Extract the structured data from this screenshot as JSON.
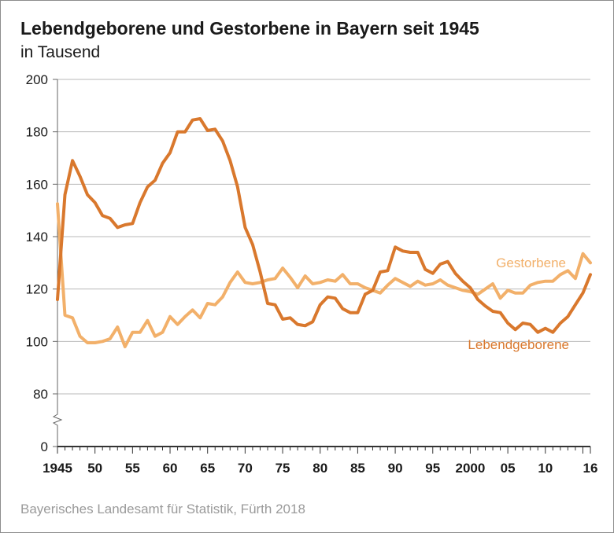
{
  "chart_data": {
    "type": "line",
    "title": "Lebendgeborene und Gestorbene in Bayern seit 1945",
    "subtitle": "in Tausend",
    "source": "Bayerisches Landesamt für Statistik, Fürth 2018",
    "xlabel": "",
    "ylabel": "",
    "ylim": [
      0,
      200
    ],
    "y_ticks": [
      "0",
      "80",
      "100",
      "120",
      "140",
      "160",
      "180",
      "200"
    ],
    "axis_break": "between 0 and 80",
    "x_tick_labels": [
      {
        "year": 1945,
        "label": "1945"
      },
      {
        "year": 1950,
        "label": "50"
      },
      {
        "year": 1955,
        "label": "55"
      },
      {
        "year": 1960,
        "label": "60"
      },
      {
        "year": 1965,
        "label": "65"
      },
      {
        "year": 1970,
        "label": "70"
      },
      {
        "year": 1975,
        "label": "75"
      },
      {
        "year": 1980,
        "label": "80"
      },
      {
        "year": 1985,
        "label": "85"
      },
      {
        "year": 1990,
        "label": "90"
      },
      {
        "year": 1995,
        "label": "95"
      },
      {
        "year": 2000,
        "label": "2000"
      },
      {
        "year": 2005,
        "label": "05"
      },
      {
        "year": 2010,
        "label": "10"
      },
      {
        "year": 2016,
        "label": "16"
      }
    ],
    "x": [
      1945,
      1946,
      1947,
      1948,
      1949,
      1950,
      1951,
      1952,
      1953,
      1954,
      1955,
      1956,
      1957,
      1958,
      1959,
      1960,
      1961,
      1962,
      1963,
      1964,
      1965,
      1966,
      1967,
      1968,
      1969,
      1970,
      1971,
      1972,
      1973,
      1974,
      1975,
      1976,
      1977,
      1978,
      1979,
      1980,
      1981,
      1982,
      1983,
      1984,
      1985,
      1986,
      1987,
      1988,
      1989,
      1990,
      1991,
      1992,
      1993,
      1994,
      1995,
      1996,
      1997,
      1998,
      1999,
      2000,
      2001,
      2002,
      2003,
      2004,
      2005,
      2006,
      2007,
      2008,
      2009,
      2010,
      2011,
      2012,
      2013,
      2014,
      2015,
      2016
    ],
    "series": [
      {
        "name": "Lebendgeborene",
        "color": "#d9782d",
        "values": [
          116,
          156,
          169,
          163,
          156,
          153,
          148,
          147,
          143.5,
          144.5,
          145,
          153,
          159,
          161.5,
          168,
          172,
          180,
          180,
          184.5,
          185,
          180.5,
          181,
          176.5,
          169,
          159,
          143.5,
          137,
          126.5,
          114.5,
          114,
          108.5,
          109,
          106.5,
          106,
          107.5,
          114,
          117,
          116.5,
          112.5,
          111,
          111,
          118,
          119.5,
          126.5,
          127,
          136,
          134.5,
          134,
          134,
          127.5,
          126,
          129.5,
          130.5,
          126,
          123,
          120.5,
          116,
          113.5,
          111.5,
          111,
          107,
          104.5,
          107,
          106.5,
          103.5,
          105,
          103.5,
          107,
          109.5,
          114,
          118.5,
          125.5
        ]
      },
      {
        "name": "Gestorbene",
        "color": "#f2b06a",
        "values": [
          152.5,
          110,
          109,
          102,
          99.5,
          99.5,
          100,
          101,
          105.5,
          98,
          103.5,
          103.5,
          108,
          102,
          103.5,
          109.5,
          106.5,
          109.5,
          112,
          109,
          114.5,
          114,
          117,
          122.5,
          126.5,
          122.5,
          122,
          122.5,
          123.5,
          124,
          128,
          124.5,
          120.5,
          125,
          122,
          122.5,
          123.5,
          123,
          125.5,
          122,
          122,
          120.5,
          119.5,
          118.5,
          121.5,
          124,
          122.5,
          121,
          123,
          121.5,
          122,
          123.5,
          121.5,
          120.5,
          119.5,
          119,
          118,
          120,
          122,
          116.5,
          119.5,
          118.5,
          118.5,
          121.5,
          122.5,
          123,
          123,
          125.5,
          127,
          124,
          133.5,
          130
        ]
      }
    ]
  }
}
